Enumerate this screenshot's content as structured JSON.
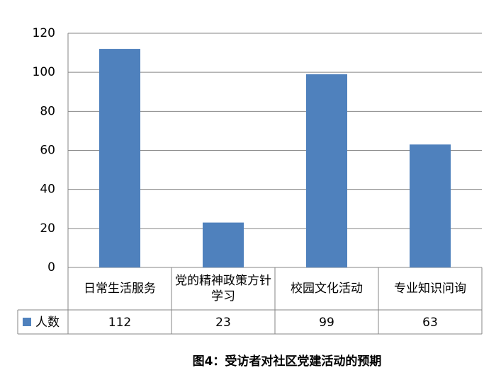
{
  "chart_data": {
    "type": "bar",
    "categories": [
      "日常生活服务",
      "党的精神政策方针学习",
      "校园文化活动",
      "专业知识问询"
    ],
    "series": [
      {
        "name": "人数",
        "color": "#4f81bd",
        "values": [
          112,
          23,
          99,
          63
        ]
      }
    ],
    "ylim": [
      0,
      120
    ],
    "yticks": [
      0,
      20,
      40,
      60,
      80,
      100,
      120
    ],
    "grid": true,
    "caption": "图4：受访者对社区党建活动的预期"
  }
}
